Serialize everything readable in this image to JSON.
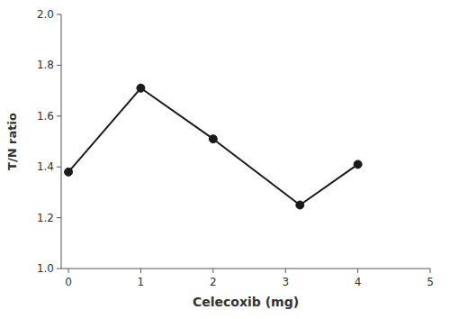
{
  "chart_data": {
    "type": "line",
    "x": [
      0,
      1,
      2,
      3.2,
      4
    ],
    "values": [
      1.38,
      1.71,
      1.51,
      1.25,
      1.41
    ],
    "xlabel": "Celecoxib (mg)",
    "ylabel": "T/N ratio",
    "xlim": [
      -0.1,
      5
    ],
    "ylim": [
      1.0,
      2.0
    ],
    "xticks": [
      0,
      1,
      2,
      3,
      4,
      5
    ],
    "yticks": [
      {
        "value": 1.0,
        "label": "1.0"
      },
      1.2,
      1.4,
      1.6,
      1.8,
      {
        "value": 2.0,
        "label": "2.0"
      }
    ],
    "color": "#1a1a1a",
    "marker": "circle",
    "grid": false
  }
}
